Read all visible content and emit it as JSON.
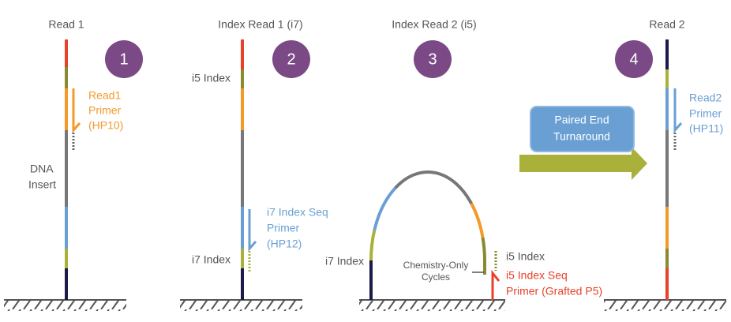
{
  "panels": [
    {
      "title": "Read 1",
      "step": "1",
      "labels": [
        "Read1",
        "Primer",
        "(HP10)",
        "DNA",
        "Insert"
      ]
    },
    {
      "title": "Index Read 1 (i7)",
      "step": "2",
      "labels": [
        "i5 Index",
        "i7 Index Seq",
        "Primer",
        "(HP12)",
        "i7 Index"
      ]
    },
    {
      "title": "Index Read 2 (i5)",
      "step": "3",
      "labels": [
        "i7 Index",
        "Chemistry-Only",
        "Cycles",
        "i5 Index",
        "i5 Index Seq",
        "Primer (Grafted P5)"
      ]
    },
    {
      "title": "Read 2",
      "step": "4",
      "labels": [
        "Read2",
        "Primer",
        "(HP11)"
      ]
    }
  ],
  "turnaround": [
    "Paired End",
    "Turnaround"
  ]
}
